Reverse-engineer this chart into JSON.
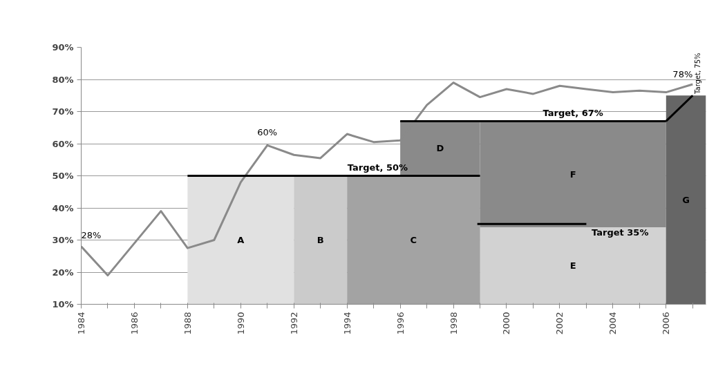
{
  "chart_data": {
    "type": "line",
    "xlim": [
      1984,
      2007.5
    ],
    "ylim": [
      10,
      90
    ],
    "xticks": [
      1984,
      {
        "value": 1985,
        "label": null
      },
      1986,
      {
        "value": 1987,
        "label": null
      },
      1988,
      {
        "value": 1989,
        "label": null
      },
      1990,
      {
        "value": 1991,
        "label": null
      },
      1992,
      {
        "value": 1993,
        "label": null
      },
      1994,
      {
        "value": 1995,
        "label": null
      },
      1996,
      {
        "value": 1997,
        "label": null
      },
      1998,
      {
        "value": 1999,
        "label": null
      },
      2000,
      {
        "value": 2001,
        "label": null
      },
      2002,
      {
        "value": 2003,
        "label": null
      },
      2004,
      {
        "value": 2005,
        "label": null
      },
      2006,
      {
        "value": 2007,
        "label": null
      }
    ],
    "yticks": [
      {
        "value": 10,
        "label": "10%"
      },
      {
        "value": 20,
        "label": "20%"
      },
      {
        "value": 30,
        "label": "30%"
      },
      {
        "value": 40,
        "label": "40%"
      },
      {
        "value": 50,
        "label": "50%"
      },
      {
        "value": 60,
        "label": "60%"
      },
      {
        "value": 70,
        "label": "70%"
      },
      {
        "value": 80,
        "label": "80%"
      },
      {
        "value": 90,
        "label": "90%"
      }
    ],
    "grid": "y",
    "legend": false,
    "series": [
      {
        "type": "area",
        "name": "D",
        "color": "#8a8a8a",
        "x": [
          1996,
          1999
        ],
        "values": [
          67,
          67
        ]
      },
      {
        "type": "area",
        "name": "F",
        "color": "#8a8a8a",
        "x": [
          1999,
          2006
        ],
        "values": [
          67,
          67
        ]
      },
      {
        "type": "area",
        "name": "A",
        "color": "#e1e1e1",
        "x": [
          1988,
          1992
        ],
        "values": [
          50,
          50
        ]
      },
      {
        "type": "area",
        "name": "B",
        "color": "#cbcbcb",
        "x": [
          1992,
          1994
        ],
        "values": [
          50,
          50
        ]
      },
      {
        "type": "area",
        "name": "C",
        "color": "#a3a3a3",
        "x": [
          1994,
          1999
        ],
        "values": [
          50,
          50
        ]
      },
      {
        "type": "area",
        "name": "E",
        "color": "#d2d2d2",
        "x": [
          1999,
          2006
        ],
        "values": [
          34,
          34
        ]
      },
      {
        "type": "area",
        "name": "G",
        "color": "#666666",
        "x": [
          2006,
          2007.5
        ],
        "values": [
          75,
          75
        ]
      },
      {
        "color": "#8a8a8a",
        "x": [
          1984,
          1985,
          1986,
          1987,
          1988,
          1989,
          1990,
          1991,
          1992,
          1993,
          1994,
          1995,
          1996,
          1997,
          1998,
          1999,
          2000,
          2001,
          2002,
          2003,
          2004,
          2005,
          2006,
          2007
        ],
        "values": [
          28,
          19,
          29,
          39,
          27.5,
          30,
          48,
          59.5,
          56.5,
          55.5,
          63,
          60.5,
          61,
          72,
          79,
          74.5,
          77,
          75.5,
          78,
          77,
          76,
          76.5,
          76,
          78.5
        ]
      },
      {
        "type": "line",
        "name": "Target, 50%",
        "color": "#000000",
        "x": [
          1988,
          1999
        ],
        "values": [
          50,
          50
        ]
      },
      {
        "type": "line",
        "name": "Target, 67%",
        "color": "#000000",
        "x": [
          1996,
          2006
        ],
        "values": [
          67,
          67
        ]
      },
      {
        "type": "line",
        "name": "Target, 75%",
        "color": "#000000",
        "x": [
          2006,
          2007
        ],
        "values": [
          67,
          75
        ]
      },
      {
        "type": "line",
        "name": "Target 35%",
        "color": "#000000",
        "x": [
          1998.9,
          2003
        ],
        "values": [
          35,
          35
        ]
      }
    ],
    "annotations": [
      {
        "text": "28%",
        "x": 1984,
        "y": 28
      },
      {
        "text": "60%",
        "x": 1991,
        "y": 60
      },
      {
        "text": "78%",
        "x": 2007,
        "y": 78
      }
    ]
  }
}
